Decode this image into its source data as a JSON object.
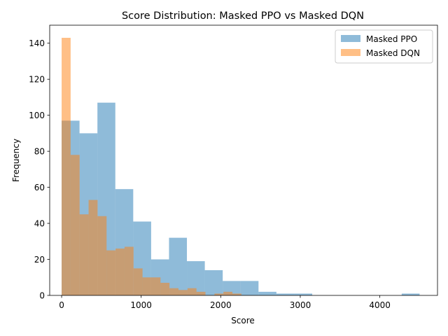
{
  "chart_data": {
    "type": "histogram",
    "title": "Score Distribution: Masked PPO vs Masked DQN",
    "xlabel": "Score",
    "ylabel": "Frequency",
    "xlim": [
      -150,
      4725
    ],
    "ylim": [
      0,
      150
    ],
    "xticks": [
      0,
      1000,
      2000,
      3000,
      4000
    ],
    "yticks": [
      0,
      20,
      40,
      60,
      80,
      100,
      120,
      140
    ],
    "legend_position": "top-right",
    "grid": false,
    "series": [
      {
        "name": "Masked PPO",
        "color": "#1f77b4",
        "opacity": 0.5,
        "bin_edges": [
          0,
          225,
          450,
          675,
          900,
          1125,
          1350,
          1575,
          1800,
          2025,
          2250,
          2475,
          2700,
          2925,
          3150,
          3375,
          3600,
          3825,
          4050,
          4275,
          4500
        ],
        "values": [
          97,
          90,
          107,
          59,
          41,
          20,
          32,
          19,
          14,
          8,
          8,
          2,
          1,
          1,
          0,
          0,
          0,
          0,
          0,
          1
        ]
      },
      {
        "name": "Masked DQN",
        "color": "#ff7f0e",
        "opacity": 0.5,
        "bin_edges": [
          0,
          113,
          226,
          339,
          452,
          565,
          678,
          791,
          904,
          1017,
          1130,
          1243,
          1356,
          1469,
          1582,
          1695,
          1808,
          1921,
          2034,
          2147,
          2260
        ],
        "values": [
          143,
          78,
          45,
          53,
          44,
          25,
          26,
          27,
          15,
          10,
          10,
          7,
          4,
          3,
          4,
          2,
          0,
          1,
          2,
          1
        ]
      }
    ]
  }
}
